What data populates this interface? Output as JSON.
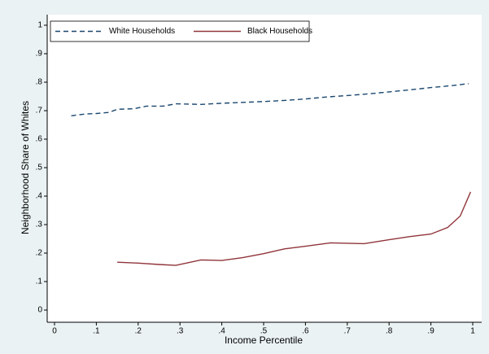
{
  "chart_data": {
    "type": "line",
    "xlabel": "Income Percentile",
    "ylabel": "Neighborhood Share of Whites",
    "xlim": [
      0,
      1
    ],
    "ylim": [
      0,
      1
    ],
    "xticks": [
      0,
      {
        "value": 0.1,
        "label": ".1"
      },
      {
        "value": 0.2,
        "label": ".2"
      },
      {
        "value": 0.3,
        "label": ".3"
      },
      {
        "value": 0.4,
        "label": ".4"
      },
      {
        "value": 0.5,
        "label": ".5"
      },
      {
        "value": 0.6,
        "label": ".6"
      },
      {
        "value": 0.7,
        "label": ".7"
      },
      {
        "value": 0.8,
        "label": ".8"
      },
      {
        "value": 0.9,
        "label": ".9"
      },
      1
    ],
    "yticks": [
      0,
      {
        "value": 0.1,
        "label": ".1"
      },
      {
        "value": 0.2,
        "label": ".2"
      },
      {
        "value": 0.3,
        "label": ".3"
      },
      {
        "value": 0.4,
        "label": ".4"
      },
      {
        "value": 0.5,
        "label": ".5"
      },
      {
        "value": 0.6,
        "label": ".6"
      },
      {
        "value": 0.7,
        "label": ".7"
      },
      {
        "value": 0.8,
        "label": ".8"
      },
      {
        "value": 0.9,
        "label": ".9"
      },
      1
    ],
    "legend": "top-left",
    "series": [
      {
        "name": "White Households",
        "color": "#1a476f",
        "dash": true,
        "x": [
          0.04,
          0.06,
          0.08,
          0.1,
          0.13,
          0.15,
          0.19,
          0.22,
          0.26,
          0.29,
          0.33,
          0.35,
          0.4,
          0.45,
          0.5,
          0.55,
          0.6,
          0.65,
          0.7,
          0.75,
          0.8,
          0.85,
          0.9,
          0.95,
          0.99
        ],
        "values": [
          0.682,
          0.686,
          0.689,
          0.69,
          0.694,
          0.705,
          0.707,
          0.716,
          0.716,
          0.724,
          0.723,
          0.722,
          0.726,
          0.729,
          0.732,
          0.736,
          0.741,
          0.748,
          0.753,
          0.759,
          0.766,
          0.773,
          0.781,
          0.788,
          0.795
        ]
      },
      {
        "name": "Black Households",
        "color": "#90353b",
        "dash": false,
        "x": [
          0.15,
          0.2,
          0.25,
          0.29,
          0.35,
          0.4,
          0.45,
          0.5,
          0.55,
          0.6,
          0.66,
          0.74,
          0.8,
          0.85,
          0.9,
          0.94,
          0.97,
          0.995
        ],
        "values": [
          0.168,
          0.165,
          0.16,
          0.157,
          0.176,
          0.174,
          0.184,
          0.198,
          0.215,
          0.224,
          0.236,
          0.233,
          0.247,
          0.258,
          0.267,
          0.29,
          0.33,
          0.415
        ]
      }
    ]
  }
}
